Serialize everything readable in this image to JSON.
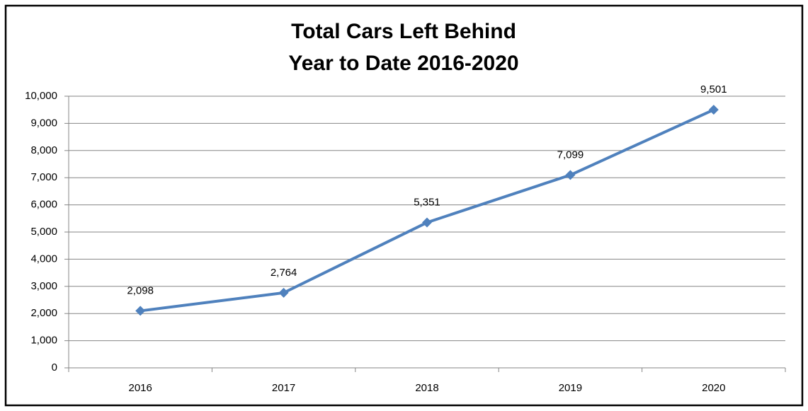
{
  "chart_data": {
    "type": "line",
    "title": "Total Cars Left Behind",
    "subtitle": "Year to Date 2016-2020",
    "categories": [
      "2016",
      "2017",
      "2018",
      "2019",
      "2020"
    ],
    "series": [
      {
        "color": "#4f81bd",
        "values": [
          2098,
          2764,
          5351,
          7099,
          9501
        ],
        "value_labels": [
          "2,098",
          "2,764",
          "5,351",
          "7,099",
          "9,501"
        ]
      }
    ],
    "ylim": [
      0,
      10000
    ],
    "yticks": [
      0,
      {
        "value": 1000,
        "label": "1,000"
      },
      {
        "value": 2000,
        "label": "2,000"
      },
      {
        "value": 3000,
        "label": "3,000"
      },
      {
        "value": 4000,
        "label": "4,000"
      },
      {
        "value": 5000,
        "label": "5,000"
      },
      {
        "value": 6000,
        "label": "6,000"
      },
      {
        "value": 7000,
        "label": "7,000"
      },
      {
        "value": 8000,
        "label": "8,000"
      },
      {
        "value": 9000,
        "label": "9,000"
      },
      {
        "value": 10000,
        "label": "10,000"
      }
    ],
    "grid": true
  }
}
